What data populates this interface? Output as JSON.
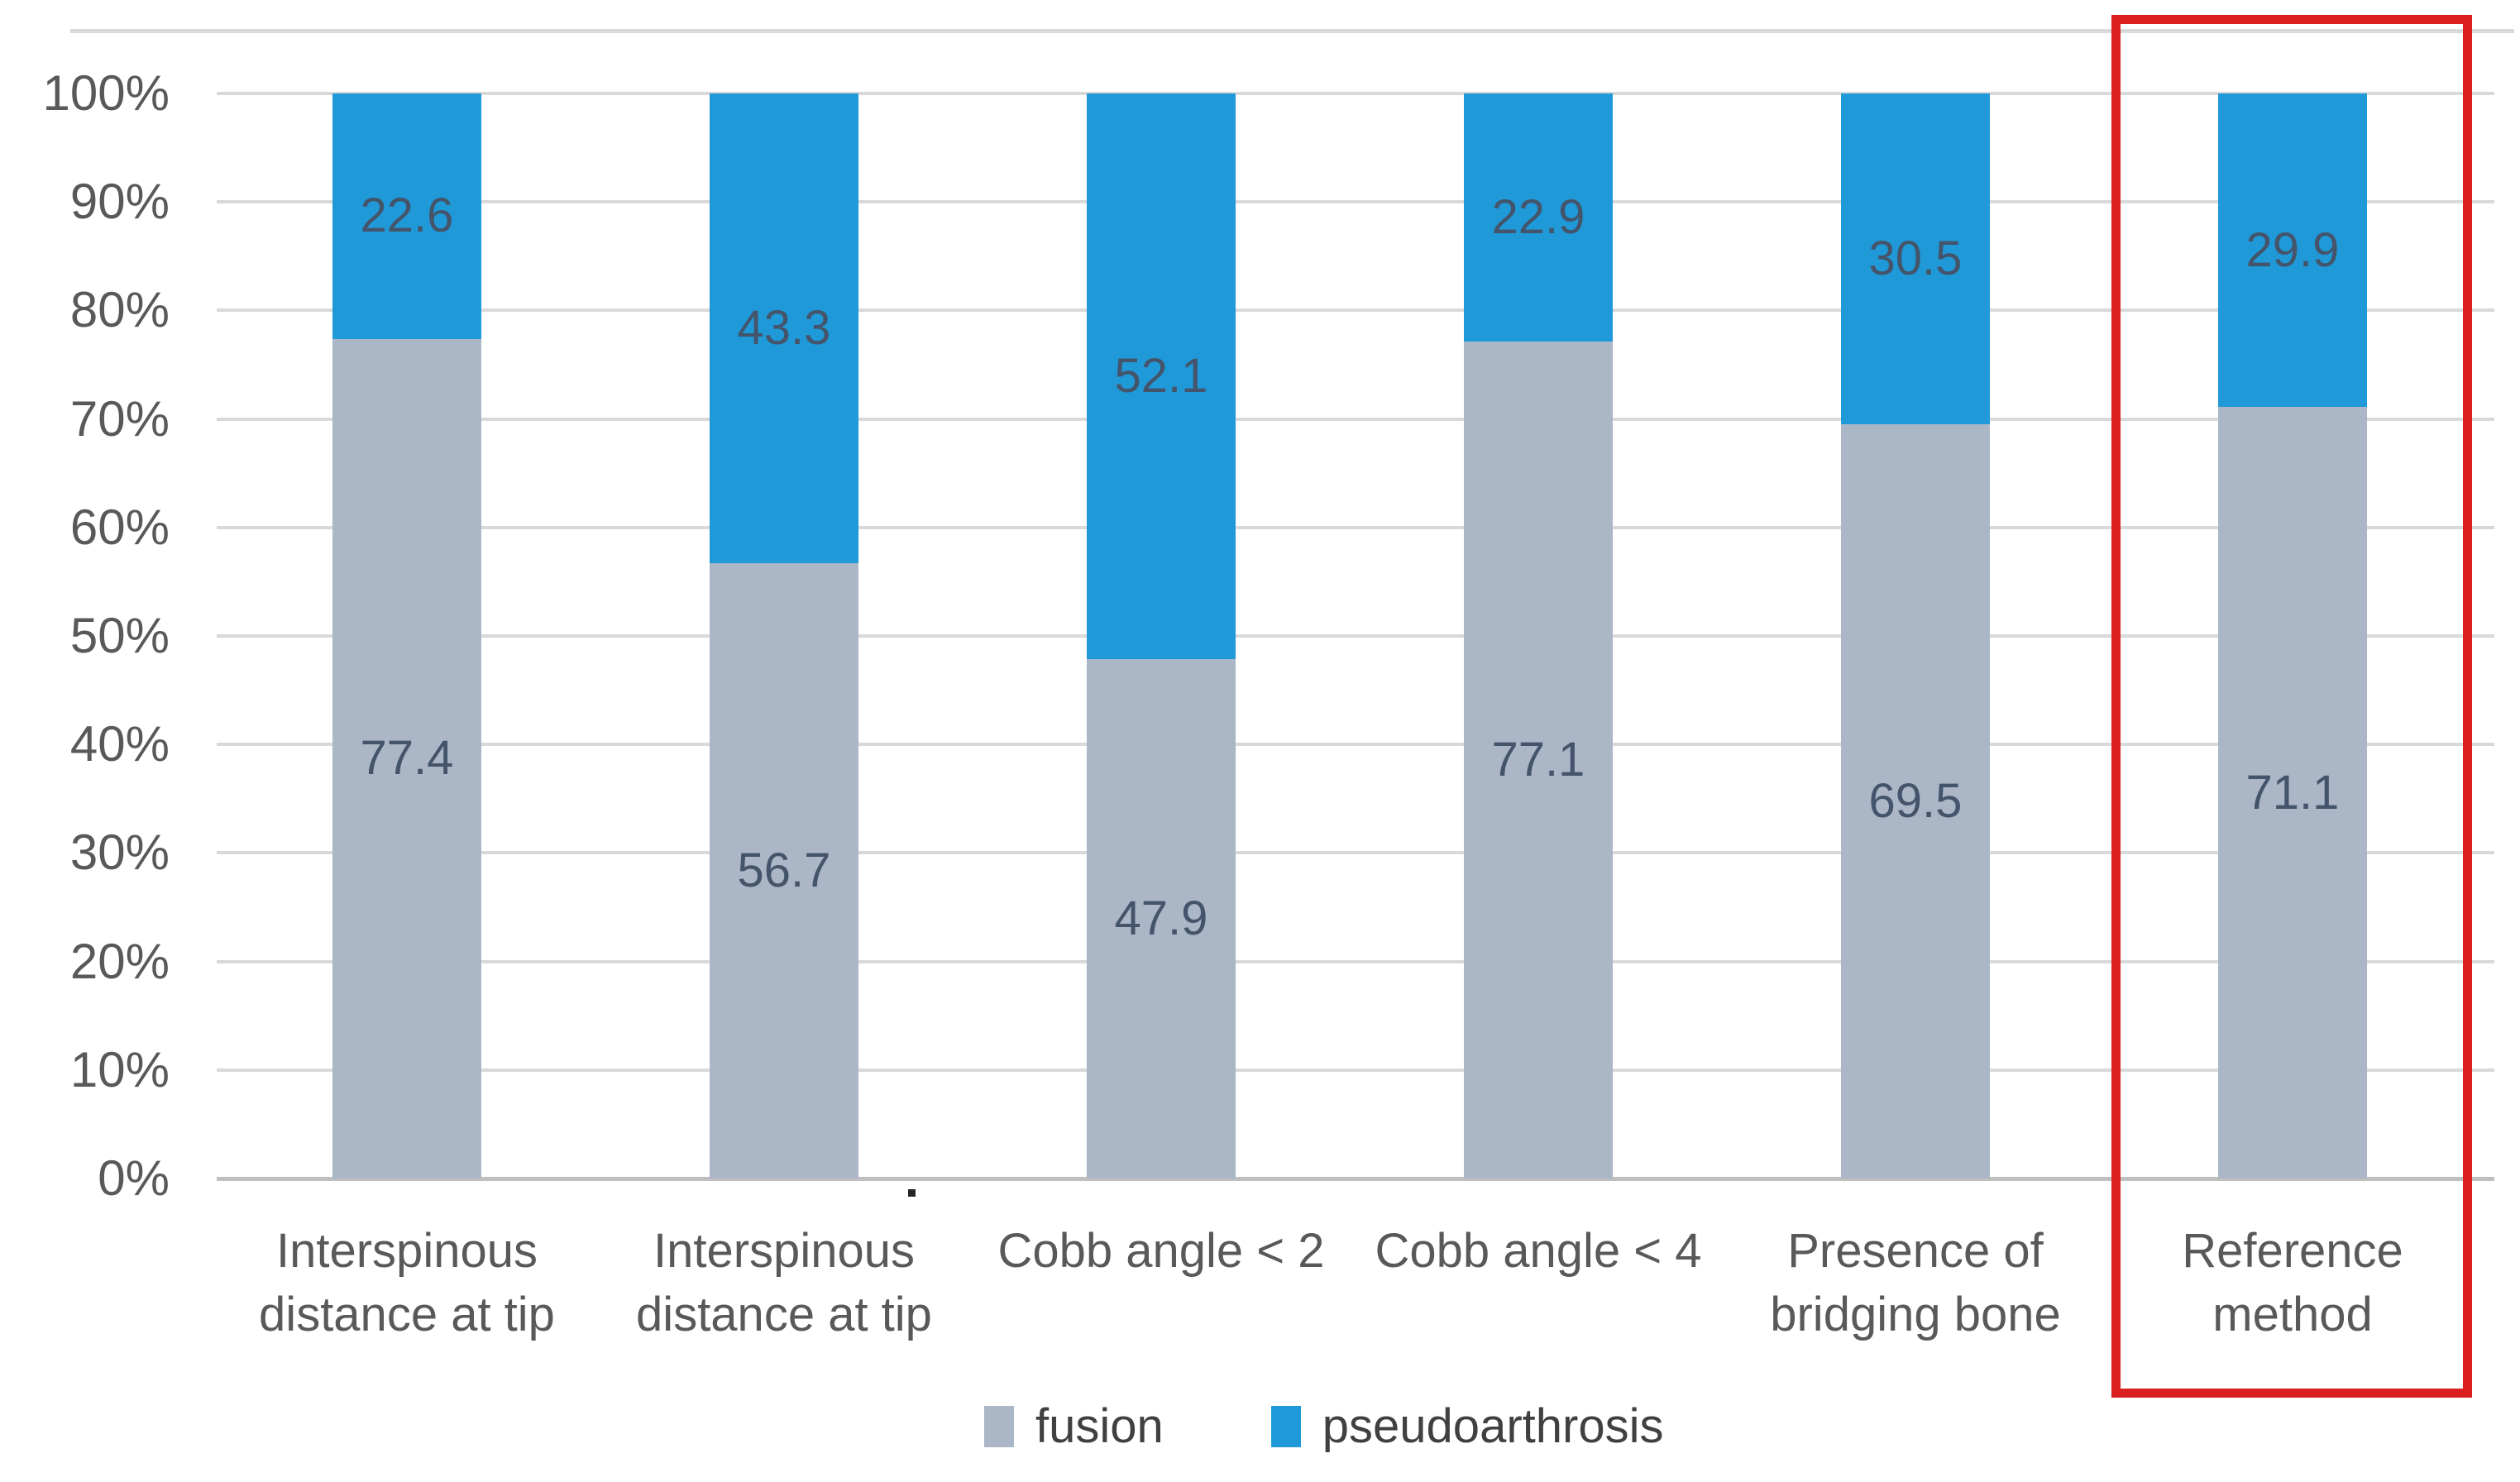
{
  "chart_data": {
    "type": "bar",
    "stacked": true,
    "stacked_unit": "percent",
    "title": "",
    "xlabel": "",
    "ylabel": "",
    "categories": [
      "Interspinous distance at tip",
      "Interspinous distance at tip",
      "Cobb angle < 2",
      "Cobb angle < 4",
      "Presence of bridging bone",
      "Reference method"
    ],
    "category_lines": [
      [
        "Interspinous",
        "distance at tip"
      ],
      [
        "Interspinous",
        "distance at tip"
      ],
      [
        "Cobb angle < 2"
      ],
      [
        "Cobb angle < 4"
      ],
      [
        "Presence of",
        "bridging bone"
      ],
      [
        "Reference",
        "method"
      ]
    ],
    "series": [
      {
        "name": "fusion",
        "color": "#ABB6C7",
        "values": [
          77.4,
          56.7,
          47.9,
          77.1,
          69.5,
          71.1
        ]
      },
      {
        "name": "pseudoarthrosis",
        "color": "#2099D8",
        "values": [
          22.6,
          43.3,
          52.1,
          22.9,
          30.5,
          29.9
        ]
      }
    ],
    "y_ticks": [
      "0%",
      "10%",
      "20%",
      "30%",
      "40%",
      "50%",
      "60%",
      "70%",
      "80%",
      "90%",
      "100%"
    ],
    "ylim": [
      0,
      100
    ],
    "grid": true,
    "legend_position": "bottom",
    "data_label_color": "#44546A",
    "axis_text_color": "#595959",
    "gridline_color": "#D9D9D9",
    "highlight": {
      "category_index": 5,
      "category": "Reference method",
      "box_color": "#D91F1F"
    }
  },
  "legend": {
    "items": [
      {
        "label": "fusion",
        "color": "#ABB6C7"
      },
      {
        "label": "pseudoarthrosis",
        "color": "#2099D8"
      }
    ]
  },
  "annotations": {
    "stray_dot": "."
  }
}
